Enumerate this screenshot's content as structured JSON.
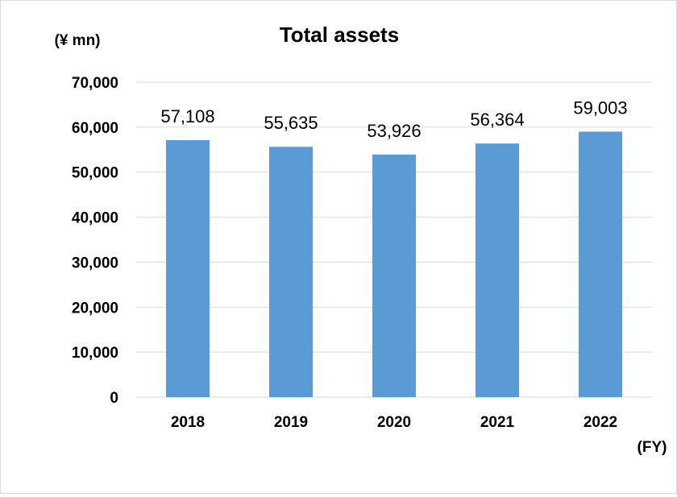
{
  "chart_data": {
    "type": "bar",
    "title": "Total assets",
    "unit_label": "(¥ mn)",
    "xaxis_label": "(FY)",
    "categories": [
      "2018",
      "2019",
      "2020",
      "2021",
      "2022"
    ],
    "values": [
      57108,
      55635,
      53926,
      56364,
      59003
    ],
    "value_labels": [
      "57,108",
      "55,635",
      "53,926",
      "56,364",
      "59,003"
    ],
    "yticks": [
      "0",
      "10,000",
      "20,000",
      "30,000",
      "40,000",
      "50,000",
      "60,000",
      "70,000"
    ],
    "ylim": [
      0,
      70000
    ],
    "grid": true,
    "legend": "none",
    "bar_color": "#5b9bd5",
    "grid_color": "#d9d9d9"
  }
}
